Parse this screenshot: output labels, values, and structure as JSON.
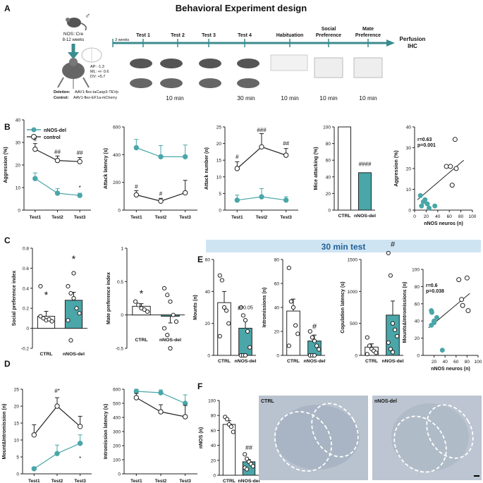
{
  "figure_title": "Behavioral Experiment design",
  "panel_labels": [
    "A",
    "B",
    "C",
    "D",
    "E",
    "F"
  ],
  "colors": {
    "teal": "#4aa6a8",
    "dark": "#222222",
    "timeline": "#3b8c8e",
    "banner": "#cfe4f2"
  },
  "panelA": {
    "mouse_line": "NOS::Cre",
    "age": "8-12 weeks",
    "coords": [
      "AP: -1.3",
      "ML: +/- 0.6",
      "DV: +5.7"
    ],
    "deletion": "AAV1-flex-taCasp3-TEVp",
    "control": "AAV1-flex-EF1a-mCherry",
    "deletion_label": "Deletion:",
    "control_label": "Control:",
    "weeks": "3 weeks",
    "steps": [
      "Test 1",
      "Test 2",
      "Test 3",
      "Test 4",
      "Habituation",
      "Social\nPreference",
      "Mate\nPreference"
    ],
    "end_label": [
      "Perfusion",
      "IHC"
    ],
    "durations": [
      "10 min",
      "30 min",
      "10 min",
      "10 min",
      "10 min"
    ]
  },
  "panelB": {
    "legend": [
      "nNOS-del",
      "control"
    ],
    "chart_data": [
      {
        "type": "line",
        "ylabel": "Aggression (%)",
        "ylim": [
          0,
          40
        ],
        "yticks": [
          0,
          10,
          20,
          30,
          40
        ],
        "categories": [
          "Test1",
          "Test2",
          "Test3"
        ],
        "series": [
          {
            "name": "control",
            "values": [
              27,
              22,
              21.5
            ],
            "err": [
              2.5,
              2,
              1.8
            ]
          },
          {
            "name": "nNOS-del",
            "values": [
              14,
              7.5,
              6.5
            ],
            "err": [
              2.5,
              2,
              1
            ]
          }
        ],
        "annotations": [
          "#",
          "##",
          "##",
          "*"
        ]
      },
      {
        "type": "line",
        "ylabel": "Attack latency (s)",
        "ylim": [
          0,
          600
        ],
        "yticks": [
          0,
          200,
          400,
          600
        ],
        "categories": [
          "Test1",
          "Test2",
          "Test3"
        ],
        "series": [
          {
            "name": "nNOS-del",
            "values": [
              450,
              385,
              385
            ],
            "err": [
              60,
              80,
              85
            ]
          },
          {
            "name": "control",
            "values": [
              110,
              65,
              125
            ],
            "err": [
              30,
              20,
              90
            ]
          }
        ],
        "annotations": [
          "#",
          "#"
        ]
      },
      {
        "type": "line",
        "ylabel": "Attack number (n)",
        "ylim": [
          0,
          25
        ],
        "yticks": [
          0,
          5,
          10,
          15,
          20,
          25
        ],
        "categories": [
          "Test1",
          "Test2",
          "Test3"
        ],
        "series": [
          {
            "name": "control",
            "values": [
              12.5,
              19,
              16.5
            ],
            "err": [
              2,
              4,
              2
            ]
          },
          {
            "name": "nNOS-del",
            "values": [
              3,
              4,
              3
            ],
            "err": [
              1.5,
              2.5,
              1
            ]
          }
        ],
        "annotations": [
          "#",
          "###",
          "##"
        ]
      },
      {
        "type": "bar",
        "ylabel": "Mice attacking (%)",
        "ylim": [
          0,
          100
        ],
        "yticks": [
          0,
          20,
          40,
          60,
          80,
          100
        ],
        "categories": [
          "CTRL",
          "nNOS-del"
        ],
        "values": [
          100,
          45
        ],
        "annotations": [
          "####"
        ]
      },
      {
        "type": "scatter",
        "ylabel": "Aggression (%)",
        "xlabel": "nNOS neuros (n)",
        "xlim": [
          0,
          100
        ],
        "ylim": [
          0,
          40
        ],
        "xticks": [
          0,
          20,
          40,
          60,
          80,
          100
        ],
        "yticks": [
          0,
          10,
          20,
          30,
          40
        ],
        "stats": [
          "r=0.63",
          "p=0.001"
        ],
        "series": [
          {
            "name": "nNOS-del",
            "points": [
              [
                10,
                7
              ],
              [
                12,
                2
              ],
              [
                15,
                4
              ],
              [
                18,
                5
              ],
              [
                22,
                3
              ],
              [
                25,
                1
              ],
              [
                35,
                2
              ]
            ]
          },
          {
            "name": "control",
            "points": [
              [
                55,
                21
              ],
              [
                62,
                21
              ],
              [
                65,
                12
              ],
              [
                72,
                20
              ],
              [
                70,
                34
              ]
            ]
          }
        ],
        "fit": [
          [
            5,
            5
          ],
          [
            85,
            24
          ]
        ]
      }
    ]
  },
  "panelC": {
    "chart_data": [
      {
        "type": "bar",
        "ylabel": "Social preference index",
        "ylim": [
          -0.2,
          0.8
        ],
        "yticks": [
          -0.2,
          0.0,
          0.2,
          0.4,
          0.6,
          0.8
        ],
        "categories": [
          "CTRL",
          "nNOS-del"
        ],
        "values": [
          0.12,
          0.28
        ],
        "err": [
          0.05,
          0.08
        ],
        "annotations": [
          "*",
          "*"
        ],
        "points": [
          [
            0.42,
            0.1,
            0.08,
            0.09,
            0.07,
            0.12
          ],
          [
            0.42,
            0.35,
            0.3,
            0.2,
            0.15,
            0.08,
            -0.12,
            0.55
          ]
        ]
      },
      {
        "type": "bar",
        "ylabel": "Mate preference index",
        "ylim": [
          -0.5,
          1.0
        ],
        "yticks": [
          -0.5,
          0.0,
          0.5,
          1.0
        ],
        "categories": [
          "CTRL",
          "nNOS-del"
        ],
        "values": [
          0.13,
          -0.02
        ],
        "err": [
          0.04,
          0.1
        ],
        "annotations": [
          "*"
        ],
        "points": [
          [
            0.2,
            0.15,
            0.1,
            0.08,
            0.05
          ],
          [
            0.4,
            0.3,
            0.2,
            0.0,
            -0.1,
            -0.2,
            -0.3,
            -0.5
          ]
        ]
      }
    ]
  },
  "panelD": {
    "chart_data": [
      {
        "type": "line",
        "ylabel": "Mount&Intromission (n)",
        "ylim": [
          0,
          25
        ],
        "yticks": [
          0,
          5,
          10,
          15,
          20,
          25
        ],
        "categories": [
          "Test1",
          "Test2",
          "Test3"
        ],
        "series": [
          {
            "name": "control",
            "values": [
              11.5,
              20,
              14
            ],
            "err": [
              3,
              2.5,
              3
            ]
          },
          {
            "name": "nNOS-del",
            "values": [
              1.5,
              6,
              9
            ],
            "err": [
              0.5,
              2.5,
              2.5
            ]
          }
        ],
        "annotations": [
          "#*",
          "*"
        ]
      },
      {
        "type": "line",
        "ylabel": "Intromission latency (s)",
        "ylim": [
          0,
          600
        ],
        "yticks": [
          0,
          100,
          200,
          300,
          400,
          500,
          600
        ],
        "categories": [
          "Test1",
          "Test2",
          "Test3"
        ],
        "series": [
          {
            "name": "nNOS-del",
            "values": [
              585,
              575,
              500
            ],
            "err": [
              15,
              20,
              60
            ]
          },
          {
            "name": "control",
            "values": [
              540,
              440,
              405
            ],
            "err": [
              30,
              50,
              80
            ]
          }
        ]
      }
    ]
  },
  "panelE": {
    "banner": "30 min test",
    "chart_data": [
      {
        "type": "bar",
        "ylabel": "Mounts (n)",
        "ylim": [
          0,
          60
        ],
        "yticks": [
          0,
          20,
          40,
          60
        ],
        "categories": [
          "CTRL",
          "nNOS-del"
        ],
        "values": [
          33,
          17
        ],
        "err": [
          7,
          5
        ],
        "annotations": [
          "p=0.05"
        ],
        "points": [
          [
            50,
            47,
            30,
            28,
            20,
            12
          ],
          [
            30,
            25,
            22,
            15,
            5,
            0,
            0,
            0
          ]
        ]
      },
      {
        "type": "bar",
        "ylabel": "Intromissions (n)",
        "ylim": [
          0,
          80
        ],
        "yticks": [
          0,
          20,
          40,
          60,
          80
        ],
        "categories": [
          "CTRL",
          "nNOS-del"
        ],
        "values": [
          37,
          12
        ],
        "err": [
          10,
          5
        ],
        "annotations": [
          "#"
        ],
        "points": [
          [
            73,
            45,
            40,
            25,
            18,
            8
          ],
          [
            20,
            15,
            12,
            8,
            5,
            0,
            0,
            0
          ]
        ]
      },
      {
        "type": "bar",
        "ylabel": "Copulation latency (s)",
        "ylim": [
          0,
          1500
        ],
        "yticks": [
          0,
          500,
          1000,
          1500
        ],
        "categories": [
          "CTRL",
          "nNOS-del"
        ],
        "values": [
          130,
          630
        ],
        "err": [
          50,
          220
        ],
        "annotations": [
          "#"
        ],
        "points": [
          [
            280,
            150,
            100,
            70,
            40,
            20
          ],
          [
            1600,
            1250,
            500,
            400,
            300,
            200,
            100,
            50
          ]
        ]
      },
      {
        "type": "scatter",
        "ylabel": "Mounts&Intromissions (n)",
        "xlabel": "nNOS neuros (n)",
        "xlim": [
          0,
          100
        ],
        "ylim": [
          0,
          100
        ],
        "xticks": [
          20,
          40,
          60,
          80,
          100
        ],
        "yticks": [
          0,
          20,
          40,
          60,
          80,
          100
        ],
        "stats": [
          "r=0.6",
          "p=0.038"
        ],
        "series": [
          {
            "name": "nNOS-del",
            "points": [
              [
                15,
                52
              ],
              [
                16,
                50
              ],
              [
                15,
                35
              ],
              [
                20,
                40
              ],
              [
                20,
                38
              ],
              [
                25,
                44
              ],
              [
                35,
                6
              ]
            ]
          },
          {
            "name": "control",
            "points": [
              [
                65,
                88
              ],
              [
                70,
                65
              ],
              [
                72,
                58
              ],
              [
                80,
                90
              ],
              [
                82,
                52
              ]
            ]
          }
        ],
        "fit": [
          [
            10,
            32
          ],
          [
            85,
            72
          ]
        ]
      }
    ]
  },
  "panelF": {
    "chart_data": {
      "type": "bar",
      "ylabel": "nNOS (n)",
      "ylim": [
        0,
        100
      ],
      "yticks": [
        0,
        20,
        40,
        60,
        80,
        100
      ],
      "categories": [
        "CTRL",
        "nNOS-del"
      ],
      "values": [
        68,
        18
      ],
      "err": [
        5,
        3
      ],
      "annotations": [
        "##"
      ],
      "points": [
        [
          78,
          75,
          68,
          65,
          58
        ],
        [
          28,
          22,
          18,
          15,
          12,
          10,
          8
        ]
      ]
    },
    "images": [
      "CTRL",
      "nNOS-del"
    ]
  }
}
